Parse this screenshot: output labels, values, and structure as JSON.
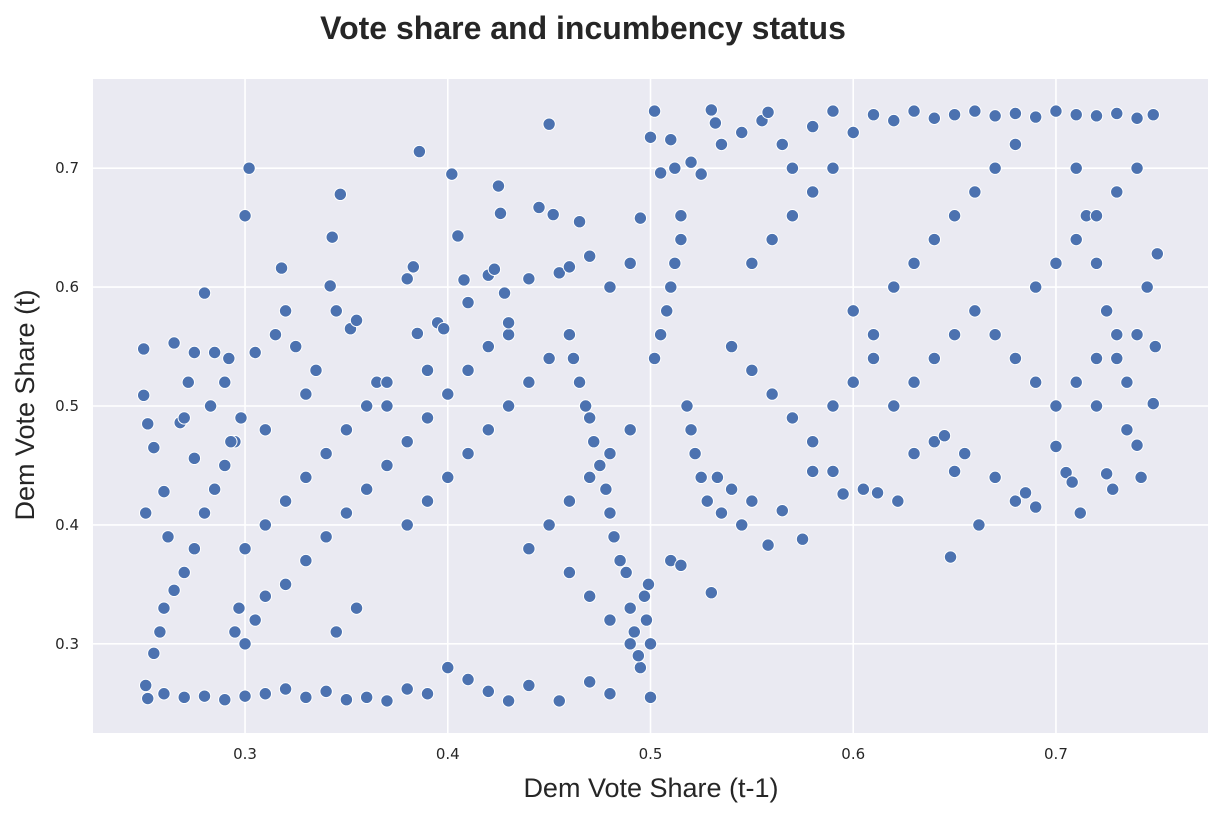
{
  "chart_data": {
    "type": "scatter",
    "title": "Vote share and incumbency status",
    "xlabel": "Dem Vote Share (t-1)",
    "ylabel": "Dem Vote Share (t)",
    "xlim": [
      0.225,
      0.775
    ],
    "ylim": [
      0.225,
      0.775
    ],
    "xticks": [
      0.3,
      0.4,
      0.5,
      0.6,
      0.7
    ],
    "yticks": [
      0.3,
      0.4,
      0.5,
      0.6,
      0.7
    ],
    "xtick_labels": [
      "0.3",
      "0.4",
      "0.5",
      "0.6",
      "0.7"
    ],
    "ytick_labels": [
      "0.3",
      "0.4",
      "0.5",
      "0.6",
      "0.7"
    ],
    "grid": true,
    "legend": "none",
    "colors": {
      "marker": "#4c72b0",
      "marker_edge": "#ffffff",
      "plot_background": "#eaeaf2",
      "grid": "#ffffff",
      "text": "#262626"
    },
    "series": [
      {
        "points": [
          [
            0.25,
            0.548
          ],
          [
            0.25,
            0.509
          ],
          [
            0.251,
            0.41
          ],
          [
            0.252,
            0.485
          ],
          [
            0.255,
            0.465
          ],
          [
            0.26,
            0.428
          ],
          [
            0.262,
            0.39
          ],
          [
            0.265,
            0.553
          ],
          [
            0.268,
            0.486
          ],
          [
            0.27,
            0.49
          ],
          [
            0.272,
            0.52
          ],
          [
            0.275,
            0.456
          ],
          [
            0.275,
            0.545
          ],
          [
            0.28,
            0.595
          ],
          [
            0.283,
            0.5
          ],
          [
            0.285,
            0.545
          ],
          [
            0.29,
            0.52
          ],
          [
            0.292,
            0.54
          ],
          [
            0.295,
            0.47
          ],
          [
            0.298,
            0.49
          ],
          [
            0.3,
            0.66
          ],
          [
            0.302,
            0.7
          ],
          [
            0.305,
            0.545
          ],
          [
            0.31,
            0.48
          ],
          [
            0.315,
            0.56
          ],
          [
            0.318,
            0.616
          ],
          [
            0.32,
            0.58
          ],
          [
            0.325,
            0.55
          ],
          [
            0.33,
            0.51
          ],
          [
            0.335,
            0.53
          ],
          [
            0.342,
            0.601
          ],
          [
            0.343,
            0.642
          ],
          [
            0.345,
            0.58
          ],
          [
            0.347,
            0.678
          ],
          [
            0.352,
            0.565
          ],
          [
            0.355,
            0.572
          ],
          [
            0.365,
            0.52
          ],
          [
            0.37,
            0.5
          ],
          [
            0.38,
            0.607
          ],
          [
            0.383,
            0.617
          ],
          [
            0.385,
            0.561
          ],
          [
            0.386,
            0.714
          ],
          [
            0.39,
            0.53
          ],
          [
            0.395,
            0.57
          ],
          [
            0.398,
            0.565
          ],
          [
            0.402,
            0.695
          ],
          [
            0.405,
            0.643
          ],
          [
            0.408,
            0.606
          ],
          [
            0.41,
            0.587
          ],
          [
            0.42,
            0.61
          ],
          [
            0.423,
            0.615
          ],
          [
            0.425,
            0.685
          ],
          [
            0.426,
            0.662
          ],
          [
            0.428,
            0.595
          ],
          [
            0.43,
            0.56
          ],
          [
            0.44,
            0.607
          ],
          [
            0.445,
            0.667
          ],
          [
            0.45,
            0.737
          ],
          [
            0.452,
            0.661
          ],
          [
            0.455,
            0.612
          ],
          [
            0.46,
            0.617
          ],
          [
            0.465,
            0.655
          ],
          [
            0.47,
            0.626
          ],
          [
            0.48,
            0.6
          ],
          [
            0.49,
            0.62
          ],
          [
            0.495,
            0.658
          ],
          [
            0.5,
            0.726
          ],
          [
            0.502,
            0.748
          ],
          [
            0.505,
            0.696
          ],
          [
            0.51,
            0.724
          ],
          [
            0.512,
            0.7
          ],
          [
            0.515,
            0.66
          ],
          [
            0.52,
            0.705
          ],
          [
            0.525,
            0.695
          ],
          [
            0.53,
            0.749
          ],
          [
            0.532,
            0.738
          ],
          [
            0.535,
            0.72
          ],
          [
            0.545,
            0.73
          ],
          [
            0.555,
            0.74
          ],
          [
            0.558,
            0.747
          ],
          [
            0.565,
            0.72
          ],
          [
            0.57,
            0.7
          ],
          [
            0.58,
            0.735
          ],
          [
            0.59,
            0.748
          ],
          [
            0.6,
            0.73
          ],
          [
            0.61,
            0.745
          ],
          [
            0.62,
            0.74
          ],
          [
            0.63,
            0.748
          ],
          [
            0.64,
            0.742
          ],
          [
            0.65,
            0.745
          ],
          [
            0.66,
            0.748
          ],
          [
            0.67,
            0.744
          ],
          [
            0.68,
            0.746
          ],
          [
            0.69,
            0.743
          ],
          [
            0.7,
            0.748
          ],
          [
            0.71,
            0.745
          ],
          [
            0.72,
            0.744
          ],
          [
            0.73,
            0.746
          ],
          [
            0.74,
            0.742
          ],
          [
            0.748,
            0.745
          ],
          [
            0.5,
            0.255
          ],
          [
            0.48,
            0.258
          ],
          [
            0.47,
            0.268
          ],
          [
            0.455,
            0.252
          ],
          [
            0.44,
            0.265
          ],
          [
            0.43,
            0.252
          ],
          [
            0.42,
            0.26
          ],
          [
            0.41,
            0.27
          ],
          [
            0.4,
            0.28
          ],
          [
            0.39,
            0.258
          ],
          [
            0.38,
            0.262
          ],
          [
            0.37,
            0.252
          ],
          [
            0.36,
            0.255
          ],
          [
            0.35,
            0.253
          ],
          [
            0.34,
            0.26
          ],
          [
            0.33,
            0.255
          ],
          [
            0.32,
            0.262
          ],
          [
            0.31,
            0.258
          ],
          [
            0.3,
            0.256
          ],
          [
            0.29,
            0.253
          ],
          [
            0.28,
            0.256
          ],
          [
            0.27,
            0.255
          ],
          [
            0.26,
            0.258
          ],
          [
            0.252,
            0.254
          ],
          [
            0.251,
            0.265
          ],
          [
            0.255,
            0.292
          ],
          [
            0.258,
            0.31
          ],
          [
            0.26,
            0.33
          ],
          [
            0.265,
            0.345
          ],
          [
            0.27,
            0.36
          ],
          [
            0.275,
            0.38
          ],
          [
            0.28,
            0.41
          ],
          [
            0.285,
            0.43
          ],
          [
            0.29,
            0.45
          ],
          [
            0.293,
            0.47
          ],
          [
            0.295,
            0.31
          ],
          [
            0.297,
            0.33
          ],
          [
            0.3,
            0.3
          ],
          [
            0.305,
            0.32
          ],
          [
            0.31,
            0.34
          ],
          [
            0.5,
            0.3
          ],
          [
            0.498,
            0.32
          ],
          [
            0.497,
            0.34
          ],
          [
            0.499,
            0.35
          ],
          [
            0.495,
            0.28
          ],
          [
            0.494,
            0.29
          ],
          [
            0.492,
            0.31
          ],
          [
            0.49,
            0.33
          ],
          [
            0.488,
            0.36
          ],
          [
            0.485,
            0.37
          ],
          [
            0.482,
            0.39
          ],
          [
            0.48,
            0.41
          ],
          [
            0.478,
            0.43
          ],
          [
            0.475,
            0.45
          ],
          [
            0.472,
            0.47
          ],
          [
            0.47,
            0.49
          ],
          [
            0.468,
            0.5
          ],
          [
            0.465,
            0.52
          ],
          [
            0.462,
            0.54
          ],
          [
            0.46,
            0.56
          ],
          [
            0.502,
            0.54
          ],
          [
            0.505,
            0.56
          ],
          [
            0.508,
            0.58
          ],
          [
            0.51,
            0.6
          ],
          [
            0.512,
            0.62
          ],
          [
            0.515,
            0.64
          ],
          [
            0.518,
            0.5
          ],
          [
            0.52,
            0.48
          ],
          [
            0.522,
            0.46
          ],
          [
            0.525,
            0.44
          ],
          [
            0.528,
            0.42
          ],
          [
            0.53,
            0.343
          ],
          [
            0.51,
            0.37
          ],
          [
            0.515,
            0.366
          ],
          [
            0.533,
            0.44
          ],
          [
            0.535,
            0.41
          ],
          [
            0.54,
            0.43
          ],
          [
            0.545,
            0.4
          ],
          [
            0.55,
            0.42
          ],
          [
            0.558,
            0.383
          ],
          [
            0.565,
            0.412
          ],
          [
            0.575,
            0.388
          ],
          [
            0.58,
            0.445
          ],
          [
            0.59,
            0.445
          ],
          [
            0.595,
            0.426
          ],
          [
            0.605,
            0.43
          ],
          [
            0.612,
            0.427
          ],
          [
            0.622,
            0.42
          ],
          [
            0.63,
            0.46
          ],
          [
            0.64,
            0.47
          ],
          [
            0.645,
            0.475
          ],
          [
            0.648,
            0.373
          ],
          [
            0.65,
            0.445
          ],
          [
            0.655,
            0.46
          ],
          [
            0.662,
            0.4
          ],
          [
            0.67,
            0.44
          ],
          [
            0.68,
            0.42
          ],
          [
            0.685,
            0.427
          ],
          [
            0.69,
            0.415
          ],
          [
            0.7,
            0.466
          ],
          [
            0.705,
            0.444
          ],
          [
            0.708,
            0.436
          ],
          [
            0.712,
            0.41
          ],
          [
            0.72,
            0.5
          ],
          [
            0.725,
            0.443
          ],
          [
            0.728,
            0.43
          ],
          [
            0.735,
            0.48
          ],
          [
            0.74,
            0.467
          ],
          [
            0.742,
            0.44
          ],
          [
            0.748,
            0.502
          ],
          [
            0.749,
            0.55
          ],
          [
            0.75,
            0.628
          ],
          [
            0.745,
            0.6
          ],
          [
            0.74,
            0.56
          ],
          [
            0.735,
            0.52
          ],
          [
            0.73,
            0.54
          ],
          [
            0.725,
            0.58
          ],
          [
            0.72,
            0.62
          ],
          [
            0.715,
            0.66
          ],
          [
            0.71,
            0.7
          ],
          [
            0.3,
            0.38
          ],
          [
            0.31,
            0.4
          ],
          [
            0.32,
            0.42
          ],
          [
            0.33,
            0.44
          ],
          [
            0.34,
            0.46
          ],
          [
            0.35,
            0.48
          ],
          [
            0.36,
            0.5
          ],
          [
            0.37,
            0.52
          ],
          [
            0.38,
            0.4
          ],
          [
            0.39,
            0.42
          ],
          [
            0.4,
            0.44
          ],
          [
            0.41,
            0.46
          ],
          [
            0.42,
            0.48
          ],
          [
            0.43,
            0.5
          ],
          [
            0.44,
            0.52
          ],
          [
            0.45,
            0.54
          ],
          [
            0.46,
            0.42
          ],
          [
            0.47,
            0.44
          ],
          [
            0.48,
            0.46
          ],
          [
            0.49,
            0.48
          ],
          [
            0.32,
            0.35
          ],
          [
            0.33,
            0.37
          ],
          [
            0.34,
            0.39
          ],
          [
            0.35,
            0.41
          ],
          [
            0.36,
            0.43
          ],
          [
            0.37,
            0.45
          ],
          [
            0.38,
            0.47
          ],
          [
            0.39,
            0.49
          ],
          [
            0.4,
            0.51
          ],
          [
            0.41,
            0.53
          ],
          [
            0.42,
            0.55
          ],
          [
            0.43,
            0.57
          ],
          [
            0.44,
            0.38
          ],
          [
            0.45,
            0.4
          ],
          [
            0.46,
            0.36
          ],
          [
            0.47,
            0.34
          ],
          [
            0.48,
            0.32
          ],
          [
            0.49,
            0.3
          ],
          [
            0.345,
            0.31
          ],
          [
            0.355,
            0.33
          ],
          [
            0.55,
            0.62
          ],
          [
            0.56,
            0.64
          ],
          [
            0.57,
            0.66
          ],
          [
            0.58,
            0.68
          ],
          [
            0.59,
            0.7
          ],
          [
            0.6,
            0.58
          ],
          [
            0.61,
            0.56
          ],
          [
            0.62,
            0.6
          ],
          [
            0.63,
            0.62
          ],
          [
            0.64,
            0.64
          ],
          [
            0.65,
            0.66
          ],
          [
            0.66,
            0.68
          ],
          [
            0.67,
            0.7
          ],
          [
            0.68,
            0.72
          ],
          [
            0.69,
            0.6
          ],
          [
            0.7,
            0.62
          ],
          [
            0.71,
            0.64
          ],
          [
            0.72,
            0.66
          ],
          [
            0.73,
            0.68
          ],
          [
            0.74,
            0.7
          ],
          [
            0.54,
            0.55
          ],
          [
            0.55,
            0.53
          ],
          [
            0.56,
            0.51
          ],
          [
            0.57,
            0.49
          ],
          [
            0.58,
            0.47
          ],
          [
            0.59,
            0.5
          ],
          [
            0.6,
            0.52
          ],
          [
            0.61,
            0.54
          ],
          [
            0.62,
            0.5
          ],
          [
            0.63,
            0.52
          ],
          [
            0.64,
            0.54
          ],
          [
            0.65,
            0.56
          ],
          [
            0.66,
            0.58
          ],
          [
            0.67,
            0.56
          ],
          [
            0.68,
            0.54
          ],
          [
            0.69,
            0.52
          ],
          [
            0.7,
            0.5
          ],
          [
            0.71,
            0.52
          ],
          [
            0.72,
            0.54
          ],
          [
            0.73,
            0.56
          ]
        ]
      }
    ]
  }
}
